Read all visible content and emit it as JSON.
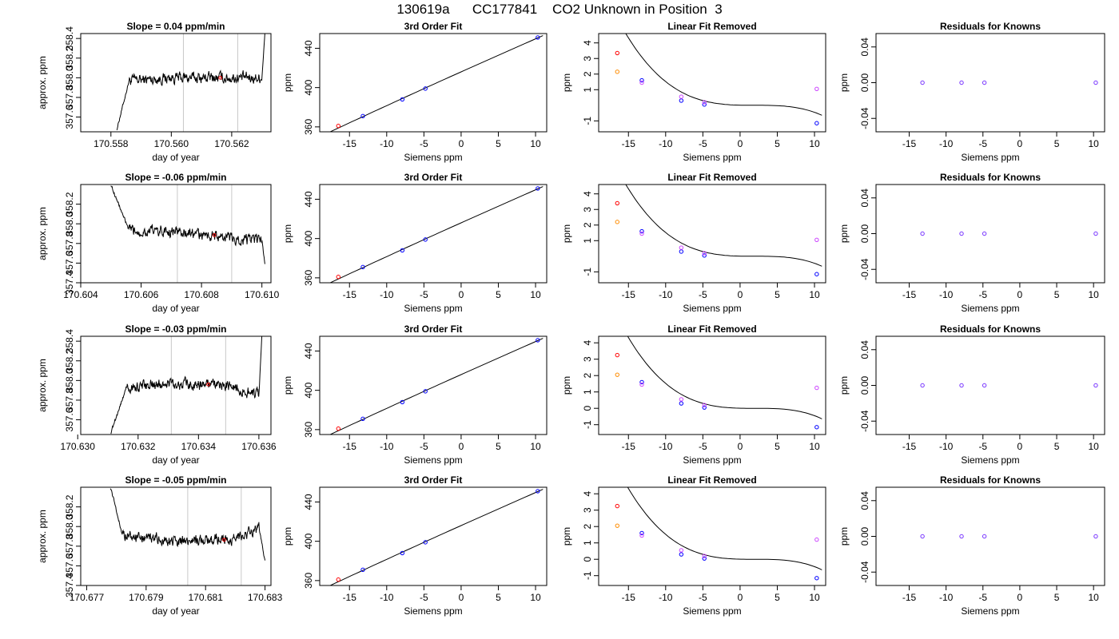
{
  "title": "130619a      CC177841    CO2 Unknown in Position  3",
  "chart_data": [
    {
      "type": "line",
      "title": "Slope =  0.04  ppm/min",
      "xlabel": "day of year",
      "ylabel": "approx. ppm",
      "xlim": [
        170.557,
        170.5633
      ],
      "ylim": [
        357.45,
        358.45
      ],
      "xticks": [
        "170.558",
        "170.560",
        "170.562"
      ],
      "yticks": [
        "357.6",
        "357.8",
        "358.0",
        "358.2",
        "358.4"
      ],
      "vlines": [
        170.5604,
        170.5622
      ],
      "trace": {
        "x": [
          170.5582,
          170.5586,
          170.56,
          170.562,
          170.563,
          170.5631
        ],
        "y": [
          357.48,
          357.97,
          358.0,
          358.0,
          358.0,
          358.45
        ]
      }
    },
    {
      "type": "scatter",
      "title": "3rd Order Fit",
      "xlabel": "Siemens ppm",
      "ylabel": "ppm",
      "xlim": [
        -19,
        11.5
      ],
      "ylim": [
        355,
        455
      ],
      "xticks": [
        "-15",
        "-10",
        "-5",
        "0",
        "5",
        "10"
      ],
      "yticks": [
        "360",
        "400",
        "440"
      ],
      "points": [
        {
          "x": -16.5,
          "y": 361,
          "color": "#ff0000"
        },
        {
          "x": -13.2,
          "y": 371,
          "color": "#0000ff"
        },
        {
          "x": -7.9,
          "y": 388,
          "color": "#0000ff"
        },
        {
          "x": -4.8,
          "y": 399,
          "color": "#0000ff"
        },
        {
          "x": 10.3,
          "y": 451,
          "color": "#0000ff"
        }
      ]
    },
    {
      "type": "scatter",
      "title": "Linear Fit Removed",
      "xlabel": "Siemens ppm",
      "ylabel": "ppm",
      "xlim": [
        -19,
        11.5
      ],
      "ylim": [
        -1.7,
        4.6
      ],
      "xticks": [
        "-15",
        "-10",
        "-5",
        "0",
        "5",
        "10"
      ],
      "yticks": [
        "-1",
        "1",
        "2",
        "3",
        "4"
      ],
      "points": [
        {
          "x": -16.5,
          "y": 3.35,
          "color": "#ff0000"
        },
        {
          "x": -16.5,
          "y": 2.15,
          "color": "#ff8c00"
        },
        {
          "x": -13.2,
          "y": 1.6,
          "color": "#0000ff"
        },
        {
          "x": -13.2,
          "y": 1.45,
          "color": "#cc44ff"
        },
        {
          "x": -7.9,
          "y": 0.3,
          "color": "#0000ff"
        },
        {
          "x": -7.9,
          "y": 0.55,
          "color": "#cc44ff"
        },
        {
          "x": -4.8,
          "y": 0.05,
          "color": "#0000ff"
        },
        {
          "x": -4.8,
          "y": 0.2,
          "color": "#cc44ff"
        },
        {
          "x": 10.3,
          "y": -1.15,
          "color": "#0000ff"
        },
        {
          "x": 10.3,
          "y": 1.05,
          "color": "#cc44ff"
        }
      ]
    },
    {
      "type": "scatter",
      "title": "Residuals for Knowns",
      "xlabel": "Siemens ppm",
      "ylabel": "ppm",
      "xlim": [
        -19.5,
        11.5
      ],
      "ylim": [
        -0.055,
        0.055
      ],
      "xticks": [
        "-15",
        "-10",
        "-5",
        "0",
        "5",
        "10"
      ],
      "yticks": [
        "-0.04",
        "0.00",
        "0.04"
      ],
      "points": [
        {
          "x": -13.2,
          "y": 0,
          "color": "#7733ff"
        },
        {
          "x": -7.9,
          "y": 0,
          "color": "#7733ff"
        },
        {
          "x": -4.8,
          "y": 0,
          "color": "#7733ff"
        },
        {
          "x": 10.3,
          "y": 0,
          "color": "#7733ff"
        }
      ]
    },
    {
      "type": "line",
      "title": "Slope =  -0.06  ppm/min",
      "xlabel": "day of year",
      "ylabel": "approx. ppm",
      "xlim": [
        170.604,
        170.6103
      ],
      "ylim": [
        357.4,
        358.4
      ],
      "xticks": [
        "170.604",
        "170.606",
        "170.608",
        "170.610"
      ],
      "yticks": [
        "357.4",
        "357.6",
        "357.8",
        "358.0",
        "358.2"
      ],
      "vlines": [
        170.6072,
        170.609
      ],
      "trace": {
        "x": [
          170.605,
          170.6056,
          170.6072,
          170.609,
          170.61,
          170.6101
        ],
        "y": [
          358.4,
          357.93,
          357.92,
          357.85,
          357.83,
          357.6
        ]
      }
    },
    {
      "type": "scatter",
      "title": "3rd Order Fit",
      "xlabel": "Siemens ppm",
      "ylabel": "ppm",
      "xlim": [
        -19,
        11.5
      ],
      "ylim": [
        355,
        455
      ],
      "xticks": [
        "-15",
        "-10",
        "-5",
        "0",
        "5",
        "10"
      ],
      "yticks": [
        "360",
        "400",
        "440"
      ],
      "points": [
        {
          "x": -16.5,
          "y": 361,
          "color": "#ff0000"
        },
        {
          "x": -13.2,
          "y": 371,
          "color": "#0000ff"
        },
        {
          "x": -7.9,
          "y": 388,
          "color": "#0000ff"
        },
        {
          "x": -4.8,
          "y": 399,
          "color": "#0000ff"
        },
        {
          "x": 10.3,
          "y": 451,
          "color": "#0000ff"
        }
      ]
    },
    {
      "type": "scatter",
      "title": "Linear Fit Removed",
      "xlabel": "Siemens ppm",
      "ylabel": "ppm",
      "xlim": [
        -19,
        11.5
      ],
      "ylim": [
        -1.7,
        4.6
      ],
      "xticks": [
        "-15",
        "-10",
        "-5",
        "0",
        "5",
        "10"
      ],
      "yticks": [
        "-1",
        "1",
        "2",
        "3",
        "4"
      ],
      "points": [
        {
          "x": -16.5,
          "y": 3.4,
          "color": "#ff0000"
        },
        {
          "x": -16.5,
          "y": 2.2,
          "color": "#ff8c00"
        },
        {
          "x": -13.2,
          "y": 1.6,
          "color": "#0000ff"
        },
        {
          "x": -13.2,
          "y": 1.45,
          "color": "#cc44ff"
        },
        {
          "x": -7.9,
          "y": 0.3,
          "color": "#0000ff"
        },
        {
          "x": -7.9,
          "y": 0.55,
          "color": "#cc44ff"
        },
        {
          "x": -4.8,
          "y": 0.05,
          "color": "#0000ff"
        },
        {
          "x": -4.8,
          "y": 0.2,
          "color": "#cc44ff"
        },
        {
          "x": 10.3,
          "y": -1.15,
          "color": "#0000ff"
        },
        {
          "x": 10.3,
          "y": 1.05,
          "color": "#cc44ff"
        }
      ]
    },
    {
      "type": "scatter",
      "title": "Residuals for Knowns",
      "xlabel": "Siemens ppm",
      "ylabel": "ppm",
      "xlim": [
        -19.5,
        11.5
      ],
      "ylim": [
        -0.055,
        0.055
      ],
      "xticks": [
        "-15",
        "-10",
        "-5",
        "0",
        "5",
        "10"
      ],
      "yticks": [
        "-0.04",
        "0.00",
        "0.04"
      ],
      "points": [
        {
          "x": -13.2,
          "y": 0,
          "color": "#7733ff"
        },
        {
          "x": -7.9,
          "y": 0,
          "color": "#7733ff"
        },
        {
          "x": -4.8,
          "y": 0,
          "color": "#7733ff"
        },
        {
          "x": 10.3,
          "y": 0,
          "color": "#7733ff"
        }
      ]
    },
    {
      "type": "line",
      "title": "Slope =  -0.03  ppm/min",
      "xlabel": "day of year",
      "ylabel": "approx. ppm",
      "xlim": [
        170.6301,
        170.6364
      ],
      "ylim": [
        357.45,
        358.45
      ],
      "xticks": [
        "170.630",
        "170.632",
        "170.634",
        "170.636"
      ],
      "yticks": [
        "357.6",
        "357.8",
        "358.0",
        "358.2",
        "358.4"
      ],
      "vlines": [
        170.6331,
        170.6349
      ],
      "trace": {
        "x": [
          170.6311,
          170.6316,
          170.633,
          170.635,
          170.636,
          170.6361
        ],
        "y": [
          357.47,
          357.92,
          357.97,
          357.95,
          357.85,
          358.45
        ]
      }
    },
    {
      "type": "scatter",
      "title": "3rd Order Fit",
      "xlabel": "Siemens ppm",
      "ylabel": "ppm",
      "xlim": [
        -19,
        11.5
      ],
      "ylim": [
        355,
        455
      ],
      "xticks": [
        "-15",
        "-10",
        "-5",
        "0",
        "5",
        "10"
      ],
      "yticks": [
        "360",
        "400",
        "440"
      ],
      "points": [
        {
          "x": -16.5,
          "y": 361,
          "color": "#ff0000"
        },
        {
          "x": -13.2,
          "y": 371,
          "color": "#0000ff"
        },
        {
          "x": -7.9,
          "y": 388,
          "color": "#0000ff"
        },
        {
          "x": -4.8,
          "y": 399,
          "color": "#0000ff"
        },
        {
          "x": 10.3,
          "y": 451,
          "color": "#0000ff"
        }
      ]
    },
    {
      "type": "scatter",
      "title": "Linear Fit Removed",
      "xlabel": "Siemens ppm",
      "ylabel": "ppm",
      "xlim": [
        -19,
        11.5
      ],
      "ylim": [
        -1.6,
        4.4
      ],
      "xticks": [
        "-15",
        "-10",
        "-5",
        "0",
        "5",
        "10"
      ],
      "yticks": [
        "-1",
        "0",
        "1",
        "2",
        "3",
        "4"
      ],
      "points": [
        {
          "x": -16.5,
          "y": 3.25,
          "color": "#ff0000"
        },
        {
          "x": -16.5,
          "y": 2.05,
          "color": "#ff8c00"
        },
        {
          "x": -13.2,
          "y": 1.6,
          "color": "#0000ff"
        },
        {
          "x": -13.2,
          "y": 1.45,
          "color": "#cc44ff"
        },
        {
          "x": -7.9,
          "y": 0.3,
          "color": "#0000ff"
        },
        {
          "x": -7.9,
          "y": 0.55,
          "color": "#cc44ff"
        },
        {
          "x": -4.8,
          "y": 0.05,
          "color": "#0000ff"
        },
        {
          "x": -4.8,
          "y": 0.2,
          "color": "#cc44ff"
        },
        {
          "x": 10.3,
          "y": -1.15,
          "color": "#0000ff"
        },
        {
          "x": 10.3,
          "y": 1.25,
          "color": "#cc44ff"
        }
      ]
    },
    {
      "type": "scatter",
      "title": "Residuals for Knowns",
      "xlabel": "Siemens ppm",
      "ylabel": "ppm",
      "xlim": [
        -19.5,
        11.5
      ],
      "ylim": [
        -0.055,
        0.055
      ],
      "xticks": [
        "-15",
        "-10",
        "-5",
        "0",
        "5",
        "10"
      ],
      "yticks": [
        "-0.04",
        "0.00",
        "0.04"
      ],
      "points": [
        {
          "x": -13.2,
          "y": 0,
          "color": "#7733ff"
        },
        {
          "x": -7.9,
          "y": 0,
          "color": "#7733ff"
        },
        {
          "x": -4.8,
          "y": 0,
          "color": "#7733ff"
        },
        {
          "x": 10.3,
          "y": 0,
          "color": "#7733ff"
        }
      ]
    },
    {
      "type": "line",
      "title": "Slope =  -0.05  ppm/min",
      "xlabel": "day of year",
      "ylabel": "approx. ppm",
      "xlim": [
        170.6768,
        170.6832
      ],
      "ylim": [
        357.4,
        358.4
      ],
      "xticks": [
        "170.677",
        "170.679",
        "170.681",
        "170.683"
      ],
      "yticks": [
        "357.4",
        "357.6",
        "357.8",
        "358.0",
        "358.2"
      ],
      "vlines": [
        170.6804,
        170.6822
      ],
      "trace": {
        "x": [
          170.6778,
          170.6782,
          170.68,
          170.682,
          170.6828,
          170.683
        ],
        "y": [
          358.4,
          357.92,
          357.85,
          357.88,
          357.98,
          357.65
        ]
      }
    },
    {
      "type": "scatter",
      "title": "3rd Order Fit",
      "xlabel": "Siemens ppm",
      "ylabel": "ppm",
      "xlim": [
        -19,
        11.5
      ],
      "ylim": [
        355,
        455
      ],
      "xticks": [
        "-15",
        "-10",
        "-5",
        "0",
        "5",
        "10"
      ],
      "yticks": [
        "360",
        "400",
        "440"
      ],
      "points": [
        {
          "x": -16.5,
          "y": 361,
          "color": "#ff0000"
        },
        {
          "x": -13.2,
          "y": 371,
          "color": "#0000ff"
        },
        {
          "x": -7.9,
          "y": 388,
          "color": "#0000ff"
        },
        {
          "x": -4.8,
          "y": 399,
          "color": "#0000ff"
        },
        {
          "x": 10.3,
          "y": 451,
          "color": "#0000ff"
        }
      ]
    },
    {
      "type": "scatter",
      "title": "Linear Fit Removed",
      "xlabel": "Siemens ppm",
      "ylabel": "ppm",
      "xlim": [
        -19,
        11.5
      ],
      "ylim": [
        -1.6,
        4.4
      ],
      "xticks": [
        "-15",
        "-10",
        "-5",
        "0",
        "5",
        "10"
      ],
      "yticks": [
        "-1",
        "0",
        "1",
        "2",
        "3",
        "4"
      ],
      "points": [
        {
          "x": -16.5,
          "y": 3.25,
          "color": "#ff0000"
        },
        {
          "x": -16.5,
          "y": 2.05,
          "color": "#ff8c00"
        },
        {
          "x": -13.2,
          "y": 1.6,
          "color": "#0000ff"
        },
        {
          "x": -13.2,
          "y": 1.45,
          "color": "#cc44ff"
        },
        {
          "x": -7.9,
          "y": 0.3,
          "color": "#0000ff"
        },
        {
          "x": -7.9,
          "y": 0.55,
          "color": "#cc44ff"
        },
        {
          "x": -4.8,
          "y": 0.05,
          "color": "#0000ff"
        },
        {
          "x": -4.8,
          "y": 0.2,
          "color": "#cc44ff"
        },
        {
          "x": 10.3,
          "y": -1.15,
          "color": "#0000ff"
        },
        {
          "x": 10.3,
          "y": 1.2,
          "color": "#cc44ff"
        }
      ]
    },
    {
      "type": "scatter",
      "title": "Residuals for Knowns",
      "xlabel": "Siemens ppm",
      "ylabel": "ppm",
      "xlim": [
        -19.5,
        11.5
      ],
      "ylim": [
        -0.055,
        0.055
      ],
      "xticks": [
        "-15",
        "-10",
        "-5",
        "0",
        "5",
        "10"
      ],
      "yticks": [
        "-0.04",
        "0.00",
        "0.04"
      ],
      "points": [
        {
          "x": -13.2,
          "y": 0,
          "color": "#7733ff"
        },
        {
          "x": -7.9,
          "y": 0,
          "color": "#7733ff"
        },
        {
          "x": -4.8,
          "y": 0,
          "color": "#7733ff"
        },
        {
          "x": 10.3,
          "y": 0,
          "color": "#7733ff"
        }
      ]
    }
  ]
}
